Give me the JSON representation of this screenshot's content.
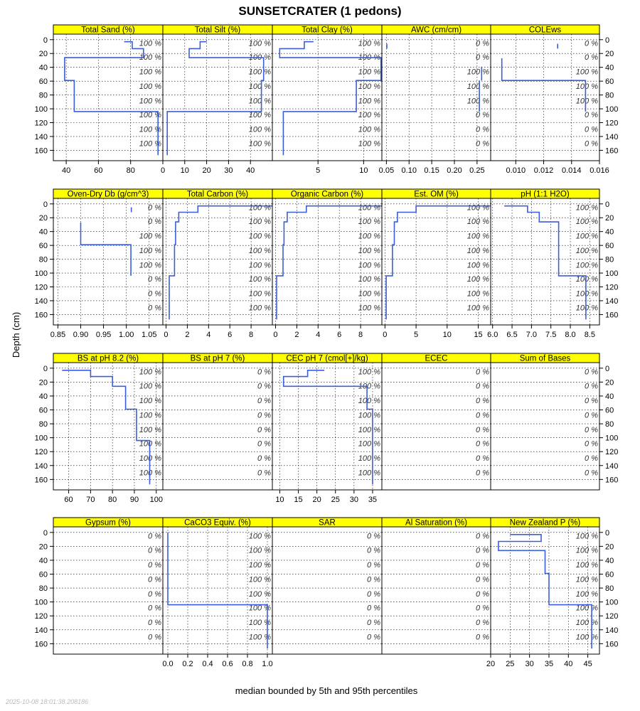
{
  "chart_data": {
    "type": "line",
    "title": "SUNSETCRATER (1 pedons)",
    "xlabel": "median bounded by 5th and 95th percentiles",
    "ylabel": "Depth (cm)",
    "ylim": [
      175,
      -8
    ],
    "yticks": [
      0,
      20,
      40,
      60,
      80,
      100,
      120,
      140,
      160
    ],
    "grid": true,
    "timestamp": "2025-10-08 18:01:38.208186",
    "pct_depths": [
      5,
      25,
      46,
      67,
      88,
      108,
      129,
      150
    ],
    "series_color": "#3b5fd9",
    "strip_color": "#ffff00",
    "panels": [
      {
        "name": "Total Sand (%)",
        "xlim": [
          32,
          100
        ],
        "xticks": [
          40,
          60,
          80
        ],
        "xtick_labels": [
          "40",
          "60",
          "80"
        ],
        "pct": [
          "100 %",
          "100 %",
          "100 %",
          "100 %",
          "100 %",
          "100 %",
          "100 %",
          "100 %"
        ],
        "profile": [
          [
            76,
            3
          ],
          [
            81,
            3
          ],
          [
            81,
            13
          ],
          [
            88,
            13
          ],
          [
            88,
            26
          ],
          [
            39,
            26
          ],
          [
            39,
            59
          ],
          [
            45,
            59
          ],
          [
            45,
            104
          ],
          [
            97,
            104
          ],
          [
            97,
            167
          ]
        ]
      },
      {
        "name": "Total Silt (%)",
        "xlim": [
          0,
          50
        ],
        "xticks": [
          0,
          10,
          20,
          30,
          40
        ],
        "xtick_labels": [
          "0",
          "10",
          "20",
          "30",
          "40"
        ],
        "pct": [
          "100 %",
          "100 %",
          "100 %",
          "100 %",
          "100 %",
          "100 %",
          "100 %",
          "100 %"
        ],
        "profile": [
          [
            20,
            3
          ],
          [
            17,
            3
          ],
          [
            17,
            13
          ],
          [
            12,
            13
          ],
          [
            12,
            26
          ],
          [
            46,
            26
          ],
          [
            46,
            59
          ],
          [
            45,
            59
          ],
          [
            45,
            104
          ],
          [
            2,
            104
          ],
          [
            2,
            167
          ]
        ]
      },
      {
        "name": "Total Clay (%)",
        "xlim": [
          0,
          12
        ],
        "xticks": [
          5,
          10
        ],
        "xtick_labels": [
          "5",
          "10"
        ],
        "pct": [
          "100 %",
          "100 %",
          "100 %",
          "100 %",
          "100 %",
          "100 %",
          "100 %",
          "100 %"
        ],
        "profile": [
          [
            4.5,
            3
          ],
          [
            3.5,
            3
          ],
          [
            3.5,
            13
          ],
          [
            0.8,
            13
          ],
          [
            0.8,
            26
          ],
          [
            11.9,
            26
          ],
          [
            11.9,
            59
          ],
          [
            9.2,
            59
          ],
          [
            9.2,
            104
          ],
          [
            1.2,
            104
          ],
          [
            1.2,
            167
          ]
        ]
      },
      {
        "name": "AWC (cm/cm)",
        "xlim": [
          0.04,
          0.28
        ],
        "xticks": [
          0.05,
          0.1,
          0.15,
          0.2,
          0.25
        ],
        "xtick_labels": [
          "0.05",
          "0.10",
          "0.15",
          "0.20",
          "0.25"
        ],
        "pct": [
          "0 %",
          "0 %",
          "100 %",
          "100 %",
          "100 %",
          "0 %",
          "0 %",
          "0 %"
        ],
        "segments": [
          [
            [
              0.051,
              6
            ],
            [
              0.051,
              13
            ]
          ],
          [
            [
              0.26,
              39
            ],
            [
              0.26,
              59
            ]
          ],
          [
            [
              0.255,
              59
            ],
            [
              0.255,
              104
            ]
          ]
        ]
      },
      {
        "name": "COLEws",
        "xlim": [
          0.0082,
          0.016
        ],
        "xticks": [
          0.01,
          0.012,
          0.014,
          0.016
        ],
        "xtick_labels": [
          "0.010",
          "0.012",
          "0.014",
          "0.016"
        ],
        "pct": [
          "0 %",
          "0 %",
          "100 %",
          "100 %",
          "100 %",
          "0 %",
          "0 %",
          "0 %"
        ],
        "segments": [
          [
            [
              0.013,
              6
            ],
            [
              0.013,
              13
            ]
          ],
          [
            [
              0.009,
              27
            ],
            [
              0.009,
              59
            ],
            [
              0.015,
              59
            ],
            [
              0.015,
              104
            ]
          ]
        ]
      },
      {
        "name": "Oven-Dry Db (g/cm^3)",
        "xlim": [
          0.84,
          1.08
        ],
        "xticks": [
          0.85,
          0.9,
          0.95,
          1.0,
          1.05
        ],
        "xtick_labels": [
          "0.85",
          "0.90",
          "0.95",
          "1.00",
          "1.05"
        ],
        "pct": [
          "0 %",
          "0 %",
          "100 %",
          "100 %",
          "100 %",
          "0 %",
          "0 %",
          "0 %"
        ],
        "segments": [
          [
            [
              1.011,
              5
            ],
            [
              1.011,
              12
            ]
          ],
          [
            [
              0.9,
              27
            ],
            [
              0.9,
              59
            ],
            [
              1.01,
              59
            ],
            [
              1.01,
              104
            ]
          ]
        ]
      },
      {
        "name": "Total Carbon (%)",
        "xlim": [
          -0.3,
          10
        ],
        "xticks": [
          0,
          2,
          4,
          6,
          8
        ],
        "xtick_labels": [
          "0",
          "2",
          "4",
          "6",
          "8"
        ],
        "pct": [
          "100 %",
          "100 %",
          "100 %",
          "100 %",
          "100 %",
          "100 %",
          "100 %",
          "100 %"
        ],
        "profile": [
          [
            10,
            3
          ],
          [
            3,
            3
          ],
          [
            3,
            12
          ],
          [
            1.2,
            12
          ],
          [
            1.2,
            26
          ],
          [
            0.9,
            26
          ],
          [
            0.9,
            59
          ],
          [
            0.8,
            59
          ],
          [
            0.8,
            104
          ],
          [
            0.3,
            104
          ],
          [
            0.3,
            167
          ]
        ]
      },
      {
        "name": "Organic Carbon (%)",
        "xlim": [
          -0.3,
          10
        ],
        "xticks": [
          0,
          2,
          4,
          6,
          8
        ],
        "xtick_labels": [
          "0",
          "2",
          "4",
          "6",
          "8"
        ],
        "pct": [
          "100 %",
          "100 %",
          "100 %",
          "100 %",
          "100 %",
          "100 %",
          "100 %",
          "100 %"
        ],
        "profile": [
          [
            10,
            3
          ],
          [
            2.9,
            3
          ],
          [
            2.9,
            12
          ],
          [
            1.1,
            12
          ],
          [
            1.1,
            26
          ],
          [
            0.8,
            26
          ],
          [
            0.8,
            59
          ],
          [
            0.7,
            59
          ],
          [
            0.7,
            104
          ],
          [
            0.1,
            104
          ],
          [
            0.1,
            167
          ]
        ]
      },
      {
        "name": "Est. OM (%)",
        "xlim": [
          -0.5,
          17
        ],
        "xticks": [
          0,
          5,
          10,
          15
        ],
        "xtick_labels": [
          "0",
          "5",
          "10",
          "15"
        ],
        "pct": [
          "100 %",
          "100 %",
          "100 %",
          "100 %",
          "100 %",
          "100 %",
          "100 %",
          "100 %"
        ],
        "profile": [
          [
            17,
            3
          ],
          [
            5,
            3
          ],
          [
            5,
            12
          ],
          [
            2,
            12
          ],
          [
            2,
            26
          ],
          [
            1.5,
            26
          ],
          [
            1.5,
            59
          ],
          [
            1.2,
            59
          ],
          [
            1.2,
            104
          ],
          [
            0.2,
            104
          ],
          [
            0.2,
            167
          ]
        ]
      },
      {
        "name": "pH (1:1 H2O)",
        "xlim": [
          5.95,
          8.75
        ],
        "xticks": [
          6.0,
          6.5,
          7.0,
          7.5,
          8.0,
          8.5
        ],
        "xtick_labels": [
          "6.0",
          "6.5",
          "7.0",
          "7.5",
          "8.0",
          "8.5"
        ],
        "pct": [
          "100 %",
          "100 %",
          "100 %",
          "100 %",
          "100 %",
          "100 %",
          "100 %",
          "100 %"
        ],
        "profile": [
          [
            6.3,
            3
          ],
          [
            6.9,
            3
          ],
          [
            6.9,
            12
          ],
          [
            7.2,
            12
          ],
          [
            7.2,
            26
          ],
          [
            7.7,
            26
          ],
          [
            7.7,
            104
          ],
          [
            8.4,
            104
          ],
          [
            8.4,
            167
          ]
        ]
      },
      {
        "name": "BS at pH 8.2 (%)",
        "xlim": [
          53,
          103
        ],
        "xticks": [
          60,
          70,
          80,
          90,
          100
        ],
        "xtick_labels": [
          "60",
          "70",
          "80",
          "90",
          "100"
        ],
        "pct": [
          "100 %",
          "100 %",
          "100 %",
          "100 %",
          "100 %",
          "100 %",
          "100 %",
          "100 %"
        ],
        "profile": [
          [
            57,
            3
          ],
          [
            70,
            3
          ],
          [
            70,
            12
          ],
          [
            80,
            12
          ],
          [
            80,
            26
          ],
          [
            86,
            26
          ],
          [
            86,
            59
          ],
          [
            91,
            59
          ],
          [
            91,
            104
          ],
          [
            97,
            104
          ],
          [
            97,
            167
          ]
        ]
      },
      {
        "name": "BS at pH 7 (%)",
        "xlim": [
          0,
          100
        ],
        "xticks": [],
        "xtick_labels": [],
        "pct": [
          "0 %",
          "0 %",
          "0 %",
          "0 %",
          "0 %",
          "0 %",
          "0 %",
          "0 %"
        ],
        "profile": []
      },
      {
        "name": "CEC pH 7 (cmol[+]/kg)",
        "xlim": [
          8,
          37.5
        ],
        "xticks": [
          10,
          15,
          20,
          25,
          30,
          35
        ],
        "xtick_labels": [
          "10",
          "15",
          "20",
          "25",
          "30",
          "35"
        ],
        "pct": [
          "100 %",
          "100 %",
          "100 %",
          "100 %",
          "100 %",
          "100 %",
          "100 %",
          "100 %"
        ],
        "profile": [
          [
            22,
            3
          ],
          [
            17.5,
            3
          ],
          [
            17.5,
            12
          ],
          [
            11,
            12
          ],
          [
            11,
            26
          ],
          [
            33.5,
            26
          ],
          [
            33.5,
            59
          ],
          [
            35,
            59
          ],
          [
            35,
            167
          ]
        ]
      },
      {
        "name": "ECEC",
        "xlim": [
          0,
          100
        ],
        "xticks": [],
        "xtick_labels": [],
        "pct": [
          "0 %",
          "0 %",
          "0 %",
          "0 %",
          "0 %",
          "0 %",
          "0 %",
          "0 %"
        ],
        "profile": []
      },
      {
        "name": "Sum of Bases",
        "xlim": [
          0,
          100
        ],
        "xticks": [],
        "xtick_labels": [],
        "pct": [
          "0 %",
          "0 %",
          "0 %",
          "0 %",
          "0 %",
          "0 %",
          "0 %",
          "0 %"
        ],
        "profile": []
      },
      {
        "name": "Gypsum (%)",
        "xlim": [
          0,
          100
        ],
        "xticks": [],
        "xtick_labels": [],
        "pct": [
          "0 %",
          "0 %",
          "0 %",
          "0 %",
          "0 %",
          "0 %",
          "0 %",
          "0 %"
        ],
        "profile": []
      },
      {
        "name": "CaCO3 Equiv. (%)",
        "xlim": [
          -0.05,
          1.05
        ],
        "xticks": [
          0.0,
          0.2,
          0.4,
          0.6,
          0.8,
          1.0
        ],
        "xtick_labels": [
          "0.0",
          "0.2",
          "0.4",
          "0.6",
          "0.8",
          "1.0"
        ],
        "pct": [
          "100 %",
          "100 %",
          "100 %",
          "100 %",
          "100 %",
          "100 %",
          "100 %",
          "100 %"
        ],
        "profile": [
          [
            0,
            0
          ],
          [
            0,
            104
          ],
          [
            1,
            104
          ],
          [
            1,
            167
          ]
        ]
      },
      {
        "name": "SAR",
        "xlim": [
          0,
          100
        ],
        "xticks": [],
        "xtick_labels": [],
        "pct": [
          "0 %",
          "0 %",
          "0 %",
          "0 %",
          "0 %",
          "0 %",
          "0 %",
          "0 %"
        ],
        "profile": []
      },
      {
        "name": "Al Saturation (%)",
        "xlim": [
          0,
          100
        ],
        "xticks": [],
        "xtick_labels": [],
        "pct": [
          "0 %",
          "0 %",
          "0 %",
          "0 %",
          "0 %",
          "0 %",
          "0 %",
          "0 %"
        ],
        "profile": []
      },
      {
        "name": "New Zealand P (%)",
        "xlim": [
          20,
          48
        ],
        "xticks": [
          20,
          25,
          30,
          35,
          40,
          45
        ],
        "xtick_labels": [
          "20",
          "25",
          "30",
          "35",
          "40",
          "45"
        ],
        "pct": [
          "100 %",
          "100 %",
          "100 %",
          "100 %",
          "100 %",
          "100 %",
          "100 %",
          "100 %"
        ],
        "profile": [
          [
            25,
            3
          ],
          [
            33,
            3
          ],
          [
            33,
            13
          ],
          [
            22,
            13
          ],
          [
            22,
            26
          ],
          [
            34,
            26
          ],
          [
            34,
            59
          ],
          [
            35,
            59
          ],
          [
            35,
            104
          ],
          [
            46,
            104
          ],
          [
            46,
            167
          ]
        ]
      }
    ]
  }
}
